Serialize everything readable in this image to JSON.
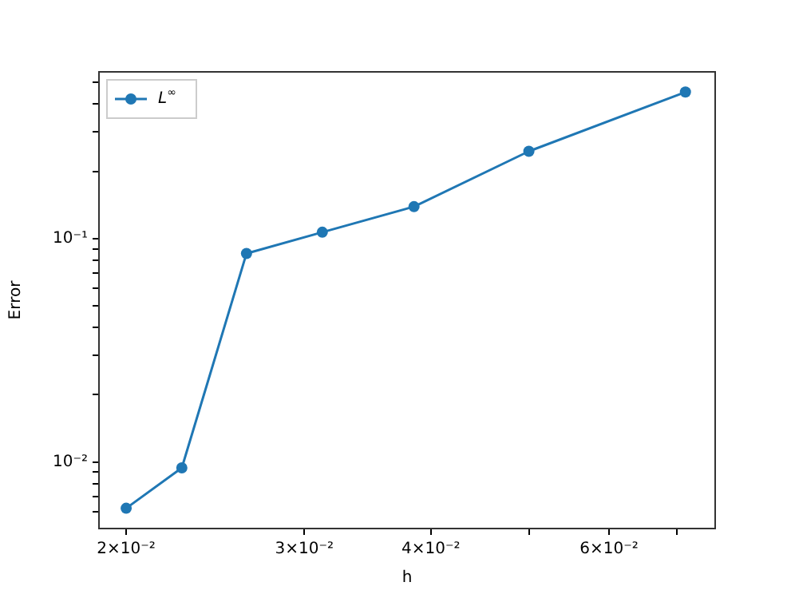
{
  "chart_data": {
    "type": "line",
    "xlabel": "h",
    "ylabel": "Error",
    "log": "xy",
    "grid": false,
    "legend": "top left",
    "marker": "circle",
    "line_style": "solid",
    "xlim": [
      0.0188,
      0.0764
    ],
    "xticks": [
      {
        "value": 0.02,
        "label": "2×10⁻²"
      },
      {
        "value": 0.03,
        "label": "3×10⁻²"
      },
      {
        "value": 0.04,
        "label": "4×10⁻²"
      },
      {
        "value": 0.05,
        "label": null
      },
      {
        "value": 0.06,
        "label": "6×10⁻²"
      },
      {
        "value": 0.07,
        "label": null
      }
    ],
    "ylim": [
      0.00503,
      0.558
    ],
    "yticks": [
      {
        "value": 0.006,
        "label": null
      },
      {
        "value": 0.007,
        "label": null
      },
      {
        "value": 0.008,
        "label": null
      },
      {
        "value": 0.009,
        "label": null
      },
      {
        "value": 0.01,
        "label": "10⁻²"
      },
      {
        "value": 0.02,
        "label": null
      },
      {
        "value": 0.03,
        "label": null
      },
      {
        "value": 0.04,
        "label": null
      },
      {
        "value": 0.05,
        "label": null
      },
      {
        "value": 0.06,
        "label": null
      },
      {
        "value": 0.07,
        "label": null
      },
      {
        "value": 0.08,
        "label": null
      },
      {
        "value": 0.09,
        "label": null
      },
      {
        "value": 0.1,
        "label": "10⁻¹"
      },
      {
        "value": 0.2,
        "label": null
      },
      {
        "value": 0.3,
        "label": null
      },
      {
        "value": 0.4,
        "label": null
      },
      {
        "value": 0.5,
        "label": null
      }
    ],
    "x": [
      0.02,
      0.0227,
      0.0263,
      0.03125,
      0.0385,
      0.05,
      0.0714
    ],
    "series": [
      {
        "name": "L$^{∞}$",
        "color": "#1f77b4",
        "values": [
          0.0062,
          0.0094,
          0.0858,
          0.1068,
          0.139,
          0.246,
          0.453
        ]
      }
    ]
  }
}
